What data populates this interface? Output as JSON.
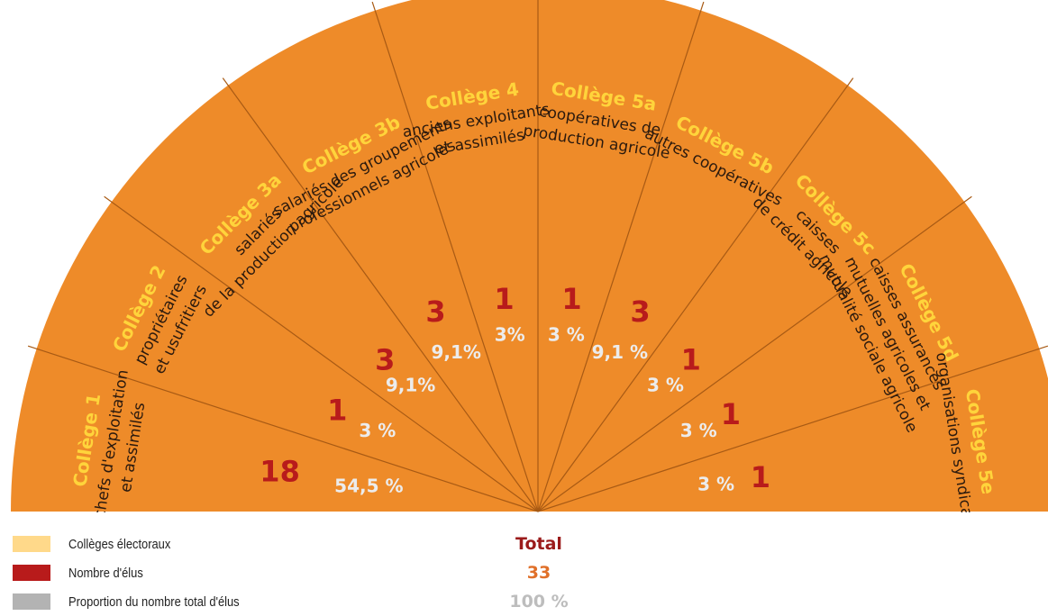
{
  "colors": {
    "fan": "#ee8b29",
    "college": "#ffd43b",
    "text": "#2b1a0e",
    "elus": "#b81b1b",
    "percent": "#ececec",
    "line": "#a85a14",
    "legend_college": "#ffd98a",
    "legend_elus": "#b81b1b",
    "legend_prop": "#b3b3b3",
    "total_label": "#9b1b1b",
    "total_value": "#e0702a",
    "total_percent": "#bdbdbd"
  },
  "chart_data": {
    "type": "pie",
    "shape": "half-fan",
    "categories": [
      "Collège 1",
      "Collège 2",
      "Collège 3a",
      "Collège 3b",
      "Collège 4",
      "Collège 5a",
      "Collège 5b",
      "Collège 5c",
      "Collège 5d",
      "Collège 5e"
    ],
    "descriptions": [
      [
        "chefs d'exploitation",
        "et assimilés"
      ],
      [
        "propriétaires",
        "et usufritiers"
      ],
      [
        "salariés",
        "de la production agricole"
      ],
      [
        "salariés des groupements",
        "professionnels agricoles"
      ],
      [
        "anciens exploitants",
        "et assimilés"
      ],
      [
        "coopératives de",
        "production agricole"
      ],
      [
        "autres coopératives"
      ],
      [
        "caisses",
        "de crédit agricole"
      ],
      [
        "caisses assurances",
        "mutuelles agricoles et",
        "mutualité sociale agricole"
      ],
      [
        "organisations syndicales"
      ]
    ],
    "values": [
      18,
      1,
      3,
      3,
      1,
      1,
      3,
      1,
      1,
      1
    ],
    "percent_labels": [
      "54,5 %",
      "3 %",
      "9,1%",
      "9,1%",
      "3%",
      "3 %",
      "9,1 %",
      "3 %",
      "3 %",
      "3 %"
    ]
  },
  "legend": {
    "college_label": "Collèges électoraux",
    "elus_label": "Nombre d'élus",
    "prop_label": "Proportion du nombre total d'élus"
  },
  "total": {
    "label": "Total",
    "value": "33",
    "percent": "100 %"
  }
}
